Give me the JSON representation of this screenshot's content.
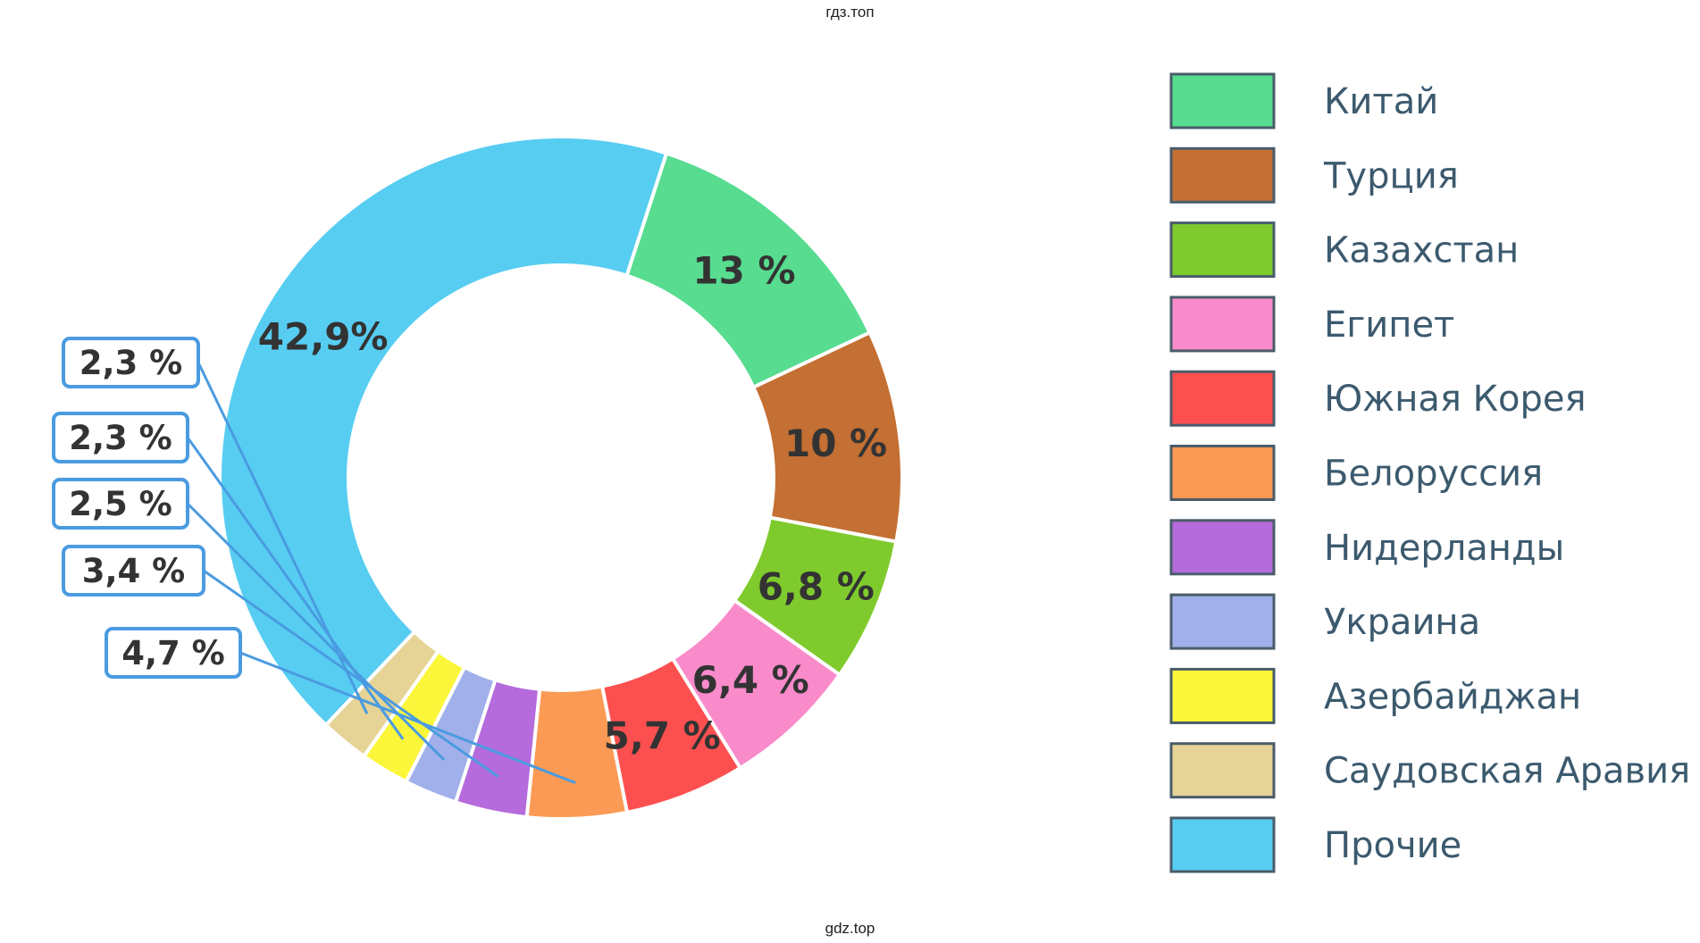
{
  "watermarks": {
    "top": "гдз.топ",
    "bottom": "gdz.top"
  },
  "chart_data": {
    "type": "pie",
    "variant": "donut",
    "legend_position": "right",
    "slices": [
      {
        "label": "Китай",
        "value": 13,
        "display": "13 %",
        "color": "#57DC90",
        "label_style": "inside"
      },
      {
        "label": "Турция",
        "value": 10,
        "display": "10 %",
        "color": "#C46F33",
        "label_style": "inside"
      },
      {
        "label": "Казахстан",
        "value": 6.8,
        "display": "6,8 %",
        "color": "#7FCB2E",
        "label_style": "inside"
      },
      {
        "label": "Египет",
        "value": 6.4,
        "display": "6,4 %",
        "color": "#F98BCB",
        "label_style": "inside"
      },
      {
        "label": "Южная Корея",
        "value": 5.7,
        "display": "5,7 %",
        "color": "#FC5050",
        "label_style": "inside"
      },
      {
        "label": "Белоруссия",
        "value": 4.7,
        "display": "4,7 %",
        "color": "#FB9A54",
        "label_style": "callout"
      },
      {
        "label": "Нидерланды",
        "value": 3.4,
        "display": "3,4 %",
        "color": "#B56BDB",
        "label_style": "callout"
      },
      {
        "label": "Украина",
        "value": 2.5,
        "display": "2,5 %",
        "color": "#A1B0EA",
        "label_style": "callout"
      },
      {
        "label": "Азербайджан",
        "value": 2.3,
        "display": "2,3 %",
        "color": "#FCF63B",
        "label_style": "callout"
      },
      {
        "label": "Саудовская Аравия",
        "value": 2.3,
        "display": "2,3 %",
        "color": "#E6D396",
        "label_style": "callout"
      },
      {
        "label": "Прочие",
        "value": 42.9,
        "display": "42,9%",
        "color": "#57CDF2",
        "label_style": "inside"
      }
    ],
    "callout_border_color": "#4A9BE0",
    "legend_swatch_border_color": "#4A5C6A",
    "label_text_color": "#333333",
    "legend_text_color": "#3C5A6E"
  }
}
